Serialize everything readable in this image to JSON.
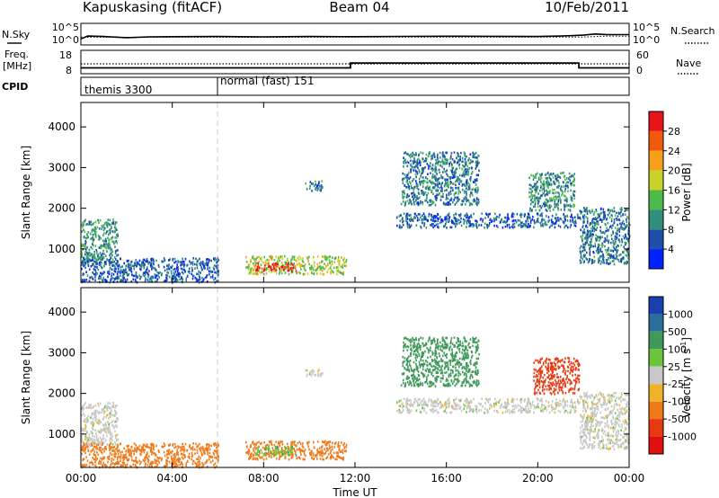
{
  "header": {
    "station": "Kapuskasing (fitACF)",
    "beam": "Beam 04",
    "date": "10/Feb/2011"
  },
  "noise_panel": {
    "left_label": "N.Sky",
    "right_label": "N.Search",
    "left_ticks": [
      "10^5",
      "10^0"
    ],
    "right_ticks": [
      "10^5",
      "10^0"
    ]
  },
  "freq_panel": {
    "left_label_top": "Freq.",
    "left_label_bottom": "[MHz]",
    "right_label": "Nave",
    "left_ticks": [
      "18",
      "8"
    ],
    "right_ticks": [
      "60",
      "0"
    ]
  },
  "cpid_panel": {
    "label": "CPID",
    "segments": [
      "themis 3300",
      "normal (fast) 151"
    ]
  },
  "time_axis": {
    "label": "Time UT",
    "ticks": [
      "00:00",
      "04:00",
      "08:00",
      "12:00",
      "16:00",
      "20:00",
      "00:00"
    ]
  },
  "power_panel": {
    "ylabel": "Slant Range [km]",
    "yticks": [
      "1000",
      "2000",
      "3000",
      "4000"
    ],
    "colorbar_label": "Power [dB]",
    "colorbar_ticks": [
      "4",
      "8",
      "12",
      "16",
      "20",
      "24",
      "28"
    ],
    "colors": [
      "#0022ff",
      "#1f4fa8",
      "#2f8f7a",
      "#4cbb4c",
      "#c8d22a",
      "#f5a018",
      "#f05a0a",
      "#e8141a"
    ]
  },
  "velocity_panel": {
    "ylabel": "Slant Range [km]",
    "yticks": [
      "1000",
      "2000",
      "3000",
      "4000"
    ],
    "colorbar_label": "Velocity [m s",
    "colorbar_label_sup": "-1",
    "colorbar_label_end": "]",
    "colorbar_ticks": [
      "1000",
      "500",
      "100",
      "25",
      "-25",
      "-100",
      "-500",
      "-1000"
    ],
    "colors": [
      "#1a3fb0",
      "#2a6e9a",
      "#3f9a5a",
      "#6cc43a",
      "#c8c8c8",
      "#f0b22a",
      "#f07a1a",
      "#e83a12",
      "#e01010"
    ]
  },
  "chart_data": [
    {
      "type": "line",
      "title": "N.Sky / N.Search",
      "x_units": "hours UT",
      "x_range": [
        0,
        24
      ],
      "y_scale": "log",
      "series": [
        {
          "name": "N.Sky",
          "x": [
            0,
            0.3,
            1,
            2,
            3,
            4,
            6,
            8,
            10,
            12,
            14,
            16,
            18,
            20,
            21,
            22,
            22.5,
            23,
            24
          ],
          "y": [
            30,
            300,
            200,
            80,
            150,
            180,
            200,
            150,
            200,
            180,
            220,
            260,
            240,
            200,
            300,
            600,
            1500,
            1000,
            900
          ]
        },
        {
          "name": "N.Search",
          "x": [
            0,
            2,
            4,
            8,
            12,
            16,
            20,
            22,
            23,
            24
          ],
          "y": [
            120,
            110,
            120,
            110,
            120,
            120,
            120,
            130,
            300,
            250
          ]
        }
      ]
    },
    {
      "type": "line",
      "title": "Freq. [MHz] / Nave",
      "x_units": "hours UT",
      "x_range": [
        0,
        24
      ],
      "y_range": [
        8,
        18
      ],
      "y2_range": [
        0,
        60
      ],
      "series": [
        {
          "name": "Freq.",
          "x": [
            0,
            11.8,
            11.8,
            21.8,
            21.8,
            24
          ],
          "y": [
            10.5,
            10.5,
            13.5,
            13.5,
            10.5,
            10.5
          ]
        },
        {
          "name": "Nave",
          "x": [
            0,
            24
          ],
          "y2": [
            30,
            30
          ]
        }
      ]
    },
    {
      "type": "table",
      "title": "CPID",
      "segments": [
        {
          "label": "themis 3300",
          "start": 0,
          "end": 6
        },
        {
          "label": "normal (fast) 151",
          "start": 6,
          "end": 24
        }
      ]
    },
    {
      "type": "heatmap",
      "title": "Power [dB]",
      "x_units": "hours UT",
      "x_range": [
        0,
        24
      ],
      "y_range": [
        180,
        4600
      ],
      "z_range": [
        0,
        30
      ],
      "regions": [
        {
          "t0": 0.0,
          "t1": 1.6,
          "r0": 650,
          "r1": 1750,
          "z": 10
        },
        {
          "t0": 0.0,
          "t1": 6.0,
          "r0": 200,
          "r1": 800,
          "z": 6
        },
        {
          "t0": 7.2,
          "t1": 11.6,
          "r0": 400,
          "r1": 850,
          "z": 16
        },
        {
          "t0": 7.6,
          "t1": 9.4,
          "r0": 480,
          "r1": 680,
          "z": 28
        },
        {
          "t0": 9.8,
          "t1": 10.6,
          "r0": 2450,
          "r1": 2700,
          "z": 8
        },
        {
          "t0": 13.8,
          "t1": 21.8,
          "r0": 1550,
          "r1": 1900,
          "z": 6
        },
        {
          "t0": 14.0,
          "t1": 17.4,
          "r0": 2100,
          "r1": 3400,
          "z": 8
        },
        {
          "t0": 19.6,
          "t1": 21.6,
          "r0": 1950,
          "r1": 2900,
          "z": 10
        },
        {
          "t0": 21.8,
          "t1": 24.0,
          "r0": 650,
          "r1": 2050,
          "z": 8
        }
      ]
    },
    {
      "type": "heatmap",
      "title": "Velocity [m s-1]",
      "x_units": "hours UT",
      "x_range": [
        0,
        24
      ],
      "y_range": [
        180,
        4600
      ],
      "z_range": [
        -1000,
        1000
      ],
      "regions": [
        {
          "t0": 0.0,
          "t1": 1.6,
          "r0": 650,
          "r1": 1800,
          "z": 0
        },
        {
          "t0": 0.0,
          "t1": 6.0,
          "r0": 200,
          "r1": 800,
          "z": -150
        },
        {
          "t0": 7.2,
          "t1": 11.6,
          "r0": 400,
          "r1": 850,
          "z": -150
        },
        {
          "t0": 7.6,
          "t1": 9.4,
          "r0": 500,
          "r1": 720,
          "z": 80
        },
        {
          "t0": 9.8,
          "t1": 10.6,
          "r0": 2450,
          "r1": 2650,
          "z": 0
        },
        {
          "t0": 13.8,
          "t1": 21.8,
          "r0": 1550,
          "r1": 1900,
          "z": 0
        },
        {
          "t0": 14.0,
          "t1": 17.4,
          "r0": 2200,
          "r1": 3400,
          "z": 150
        },
        {
          "t0": 19.8,
          "t1": 21.8,
          "r0": 2000,
          "r1": 2900,
          "z": -600
        },
        {
          "t0": 21.8,
          "t1": 24.0,
          "r0": 650,
          "r1": 2050,
          "z": 0
        }
      ]
    }
  ]
}
